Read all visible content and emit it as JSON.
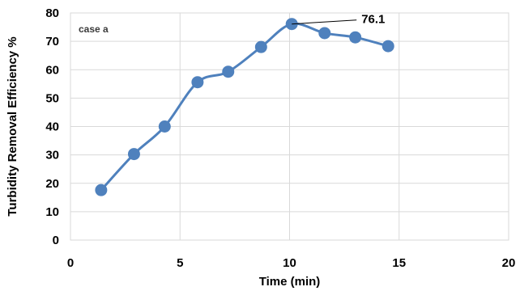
{
  "chart_data": {
    "type": "line",
    "title": "",
    "xlabel": "Time (min)",
    "ylabel": "Turbidity Removal Efficiency %",
    "xlim": [
      0,
      20
    ],
    "ylim": [
      0,
      80
    ],
    "x_ticks": [
      0,
      5,
      10,
      15,
      20
    ],
    "y_ticks": [
      0,
      10,
      20,
      30,
      40,
      50,
      60,
      70,
      80
    ],
    "grid": true,
    "annotation_label": "case a",
    "series": [
      {
        "x": [
          1.4,
          2.9,
          4.3,
          5.8,
          7.2,
          8.7,
          10.1,
          11.6,
          13.0,
          14.5
        ],
        "y": [
          17.6,
          30.3,
          40.0,
          55.6,
          59.3,
          68.0,
          76.1,
          72.9,
          71.4,
          68.3
        ],
        "color": "#4f81bd"
      }
    ],
    "callout": {
      "x": 10.1,
      "y": 76.1,
      "text": "76.1"
    }
  }
}
